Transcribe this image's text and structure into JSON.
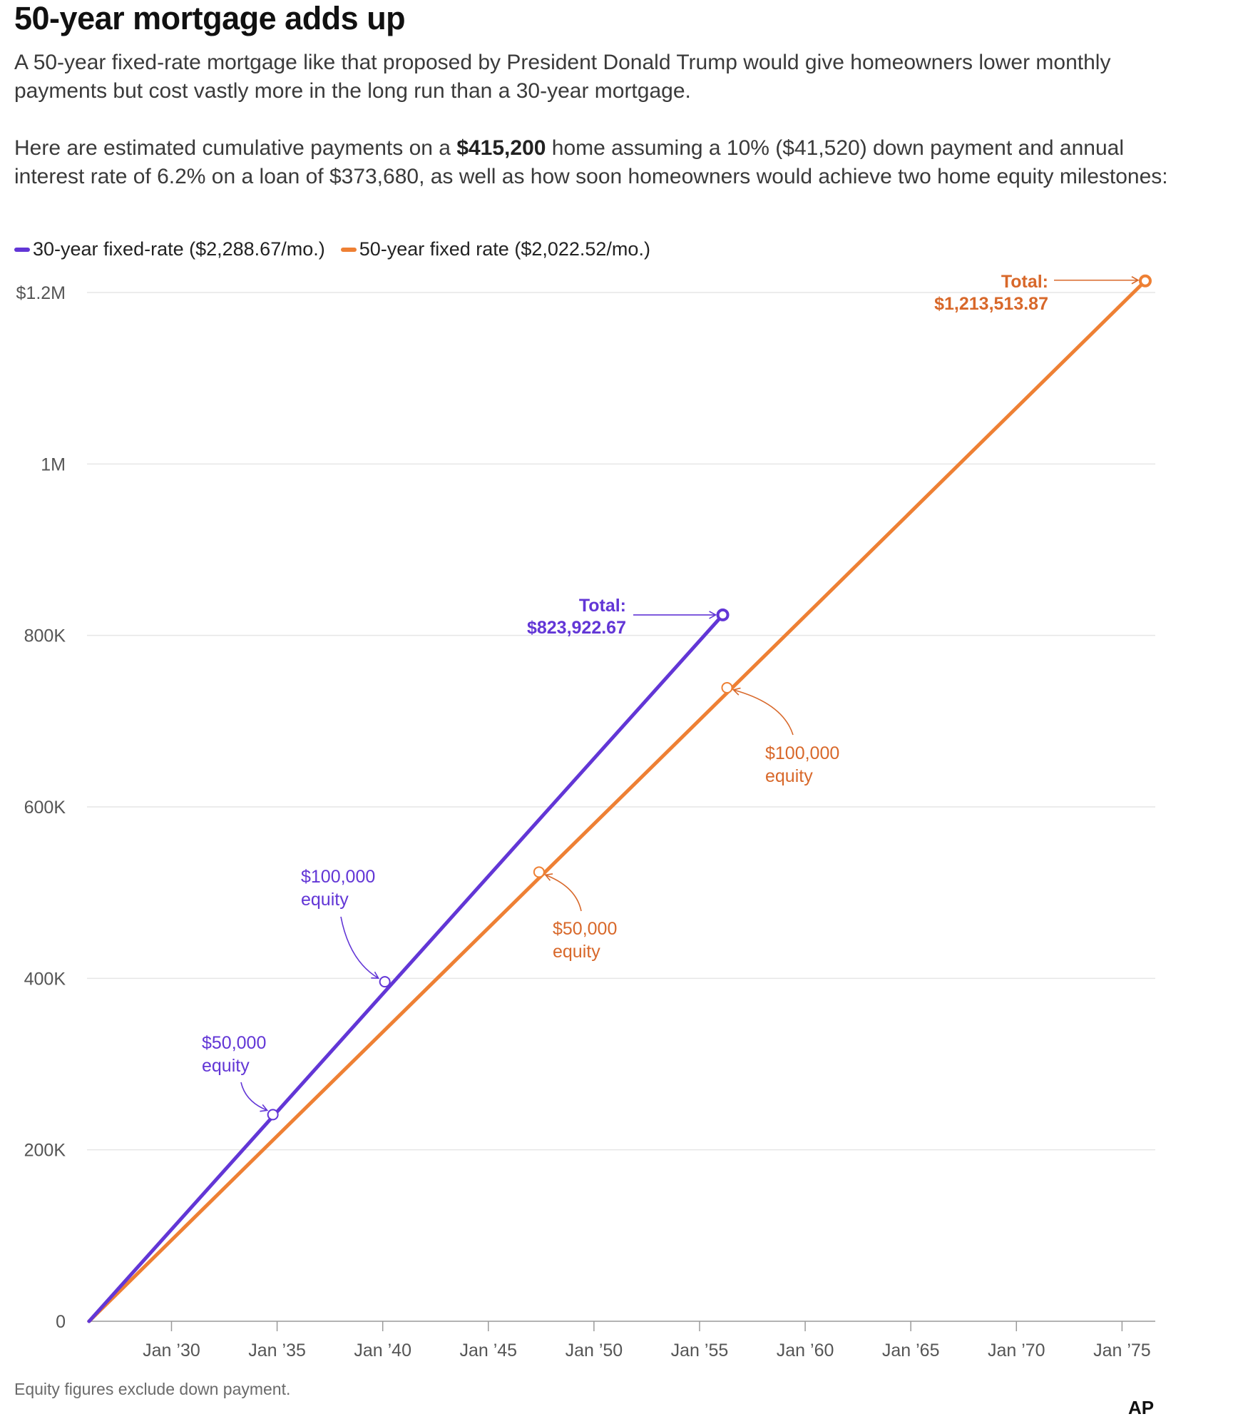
{
  "header": {
    "title": "50-year mortgage adds up",
    "intro": "A 50-year fixed-rate mortgage like that proposed by President Donald Trump would give homeowners lower monthly payments but cost vastly more in the long run than a 30-year mortgage.",
    "detail_before": "Here are estimated cumulative payments on a ",
    "detail_bold": "$415,200",
    "detail_after": " home assuming a 10% ($41,520) down payment and annual interest rate of 6.2% on a loan of $373,680, as well as how soon homeowners would achieve two home equity milestones:"
  },
  "colors": {
    "purple": "#6236d6",
    "orange": "#ee8034",
    "orange_text": "#d8682a",
    "grid": "#e6e6e6",
    "axis": "#555555"
  },
  "chart_data": {
    "type": "line",
    "title": "50-year mortgage adds up",
    "xlabel": "",
    "ylabel": "",
    "x_domain": [
      2026,
      2076
    ],
    "ylim": [
      0,
      1200000
    ],
    "y_ticks": [
      {
        "value": 0,
        "label": "0"
      },
      {
        "value": 200000,
        "label": "200K"
      },
      {
        "value": 400000,
        "label": "400K"
      },
      {
        "value": 600000,
        "label": "600K"
      },
      {
        "value": 800000,
        "label": "800K"
      },
      {
        "value": 1000000,
        "label": "1M"
      },
      {
        "value": 1200000,
        "label": "$1.2M"
      }
    ],
    "x_ticks": [
      {
        "value": 2030,
        "label": "Jan ’30"
      },
      {
        "value": 2035,
        "label": "Jan ’35"
      },
      {
        "value": 2040,
        "label": "Jan ’40"
      },
      {
        "value": 2045,
        "label": "Jan ’45"
      },
      {
        "value": 2050,
        "label": "Jan ’50"
      },
      {
        "value": 2055,
        "label": "Jan ’55"
      },
      {
        "value": 2060,
        "label": "Jan ’60"
      },
      {
        "value": 2065,
        "label": "Jan ’65"
      },
      {
        "value": 2070,
        "label": "Jan ’70"
      },
      {
        "value": 2075,
        "label": "Jan ’75"
      }
    ],
    "series": [
      {
        "key": "thirty",
        "name": "30-year fixed-rate ($2,288.67/mo.)",
        "color": "#6236d6",
        "start": [
          2026.1,
          0
        ],
        "end": [
          2056.1,
          823922.67
        ],
        "total_label": "Total:",
        "total_value": "$823,922.67",
        "milestones": [
          {
            "x": 2034.8,
            "y": 241000,
            "line1": "$50,000",
            "line2": "equity"
          },
          {
            "x": 2040.1,
            "y": 396000,
            "line1": "$100,000",
            "line2": "equity"
          }
        ]
      },
      {
        "key": "fifty",
        "name": "50-year fixed rate ($2,022.52/mo.)",
        "color": "#ee8034",
        "start": [
          2026.1,
          0
        ],
        "end": [
          2076.1,
          1213513.87
        ],
        "total_label": "Total:",
        "total_value": "$1,213,513.87",
        "milestones": [
          {
            "x": 2047.4,
            "y": 524000,
            "line1": "$50,000",
            "line2": "equity"
          },
          {
            "x": 2056.3,
            "y": 739000,
            "line1": "$100,000",
            "line2": "equity"
          }
        ]
      }
    ]
  },
  "footer": {
    "note": "Equity figures exclude down payment.",
    "source": "AP"
  }
}
